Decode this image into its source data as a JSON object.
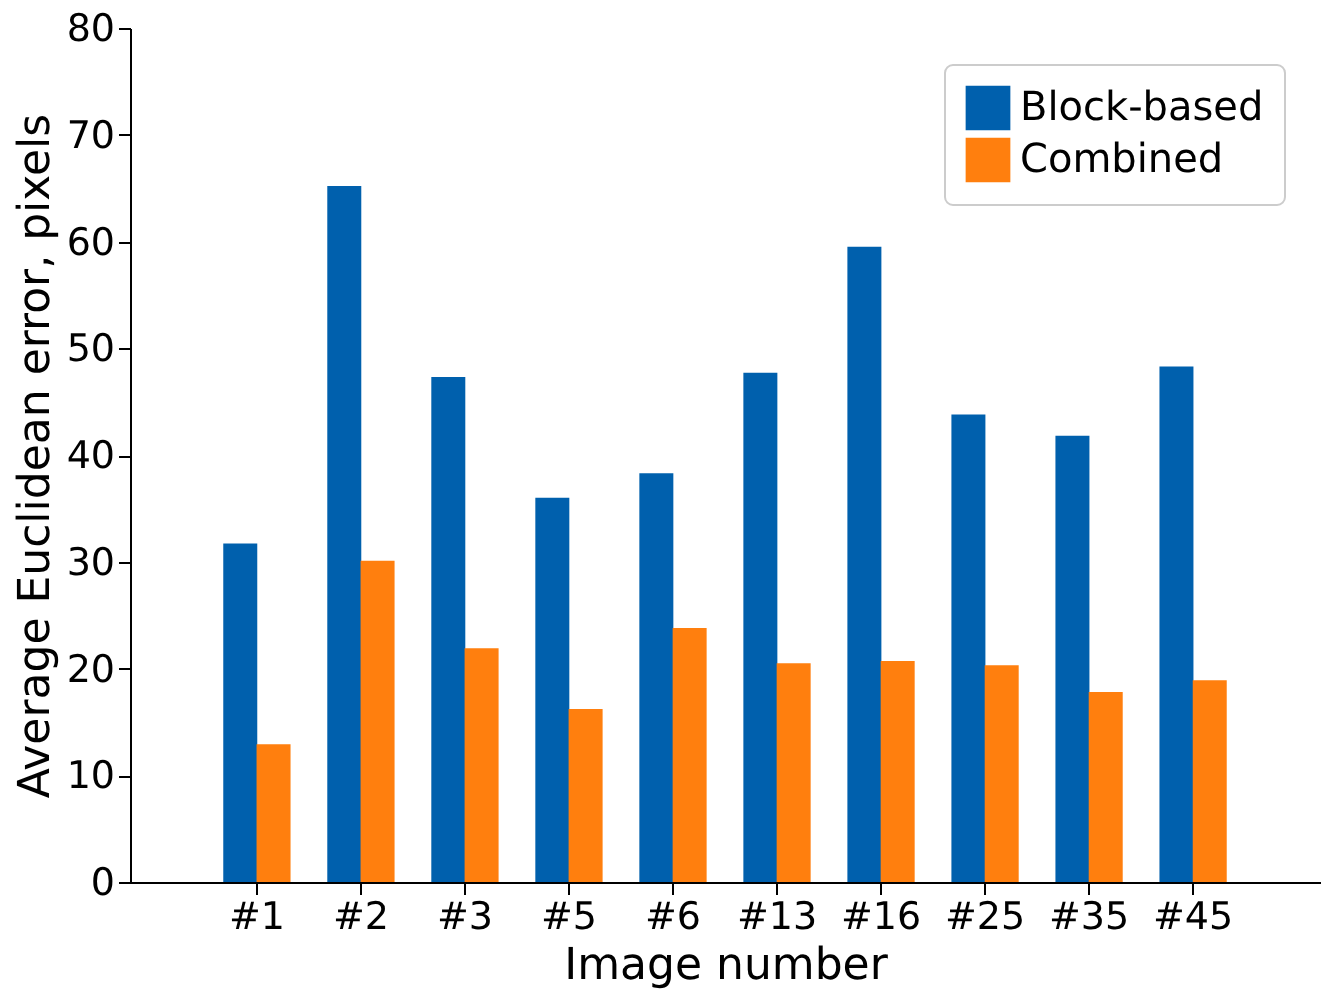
{
  "chart_data": {
    "type": "bar",
    "xlabel": "Image number",
    "ylabel": "Average Euclidean error, pixels",
    "categories": [
      "#1",
      "#2",
      "#3",
      "#5",
      "#6",
      "#13",
      "#16",
      "#25",
      "#35",
      "#45"
    ],
    "series": [
      {
        "name": "Block-based",
        "color": "#0060ad",
        "values": [
          31.7,
          65.2,
          47.3,
          36.0,
          38.3,
          47.7,
          59.5,
          43.8,
          41.8,
          48.3
        ]
      },
      {
        "name": "Combined",
        "color": "#ff7f0e",
        "values": [
          12.9,
          30.1,
          21.9,
          16.2,
          23.8,
          20.5,
          20.7,
          20.3,
          17.8,
          18.9
        ]
      }
    ],
    "ylim": [
      0,
      80
    ],
    "yticks": [
      0,
      10,
      20,
      30,
      40,
      50,
      60,
      70,
      80
    ],
    "grid": false,
    "legend": "top right"
  }
}
